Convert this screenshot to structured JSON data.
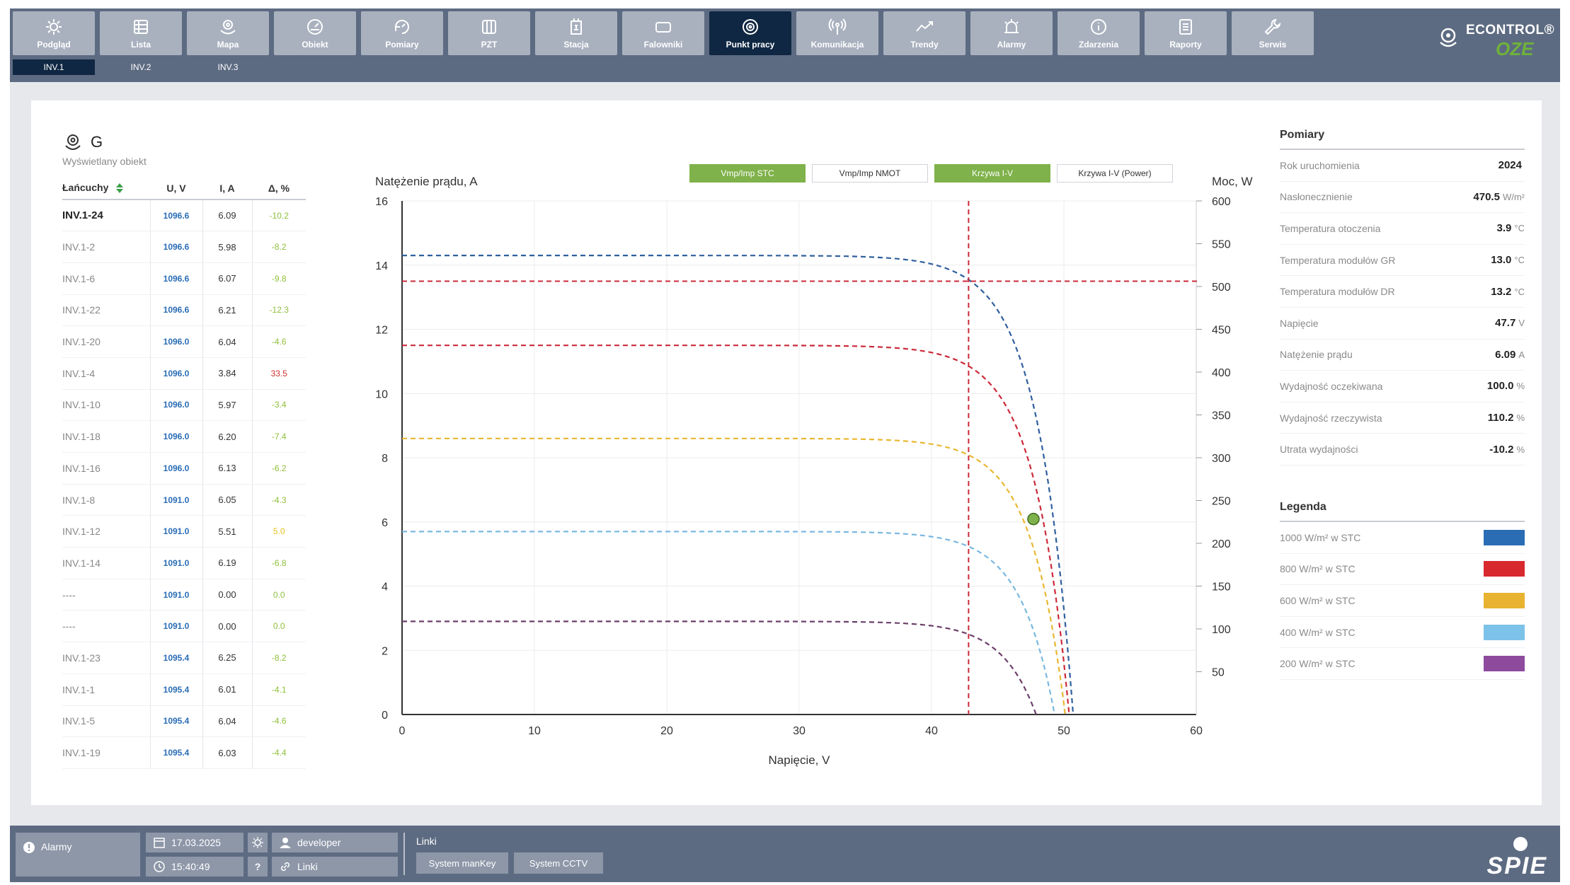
{
  "nav": {
    "items": [
      {
        "label": "Podgląd",
        "icon": "sun-icon"
      },
      {
        "label": "Lista",
        "icon": "list-icon"
      },
      {
        "label": "Mapa",
        "icon": "map-pin-icon"
      },
      {
        "label": "Obiekt",
        "icon": "gauge-icon"
      },
      {
        "label": "Pomiary",
        "icon": "refresh-gauge-icon"
      },
      {
        "label": "PZT",
        "icon": "columns-icon"
      },
      {
        "label": "Stacja",
        "icon": "station-icon"
      },
      {
        "label": "Falowniki",
        "icon": "inverter-icon"
      },
      {
        "label": "Punkt pracy",
        "icon": "target-icon"
      },
      {
        "label": "Komunikacja",
        "icon": "antenna-icon"
      },
      {
        "label": "Trendy",
        "icon": "trend-icon"
      },
      {
        "label": "Alarmy",
        "icon": "alarm-icon"
      },
      {
        "label": "Zdarzenia",
        "icon": "info-icon"
      },
      {
        "label": "Raporty",
        "icon": "report-icon"
      },
      {
        "label": "Serwis",
        "icon": "wrench-icon"
      }
    ],
    "active": "Punkt pracy",
    "subtabs": [
      "INV.1",
      "INV.2",
      "INV.3"
    ],
    "active_subtab": "INV.1"
  },
  "brand": {
    "name": "ECONTROL®",
    "sub": "OZE"
  },
  "object": {
    "name": "G",
    "subtitle": "Wyświetlany obiekt"
  },
  "strings": {
    "headers": {
      "name": "Łańcuchy",
      "u": "U, V",
      "i": "I, A",
      "d": "Δ, %"
    },
    "rows": [
      {
        "name": "INV.1-24",
        "u": "1096.6",
        "i": "6.09",
        "d": "-10.2",
        "color": "#8fbf3a"
      },
      {
        "name": "INV.1-2",
        "u": "1096.6",
        "i": "5.98",
        "d": "-8.2",
        "color": "#8fbf3a"
      },
      {
        "name": "INV.1-6",
        "u": "1096.6",
        "i": "6.07",
        "d": "-9.8",
        "color": "#8fbf3a"
      },
      {
        "name": "INV.1-22",
        "u": "1096.6",
        "i": "6.21",
        "d": "-12.3",
        "color": "#8fbf3a"
      },
      {
        "name": "INV.1-20",
        "u": "1096.0",
        "i": "6.04",
        "d": "-4.6",
        "color": "#8fbf3a"
      },
      {
        "name": "INV.1-4",
        "u": "1096.0",
        "i": "3.84",
        "d": "33.5",
        "color": "#d03030"
      },
      {
        "name": "INV.1-10",
        "u": "1096.0",
        "i": "5.97",
        "d": "-3.4",
        "color": "#8fbf3a"
      },
      {
        "name": "INV.1-18",
        "u": "1096.0",
        "i": "6.20",
        "d": "-7.4",
        "color": "#8fbf3a"
      },
      {
        "name": "INV.1-16",
        "u": "1096.0",
        "i": "6.13",
        "d": "-6.2",
        "color": "#8fbf3a"
      },
      {
        "name": "INV.1-8",
        "u": "1091.0",
        "i": "6.05",
        "d": "-4.3",
        "color": "#8fbf3a"
      },
      {
        "name": "INV.1-12",
        "u": "1091.0",
        "i": "5.51",
        "d": "5.0",
        "color": "#e8c020"
      },
      {
        "name": "INV.1-14",
        "u": "1091.0",
        "i": "6.19",
        "d": "-6.8",
        "color": "#8fbf3a"
      },
      {
        "name": "----",
        "u": "1091.0",
        "i": "0.00",
        "d": "0.0",
        "color": "#8fbf3a"
      },
      {
        "name": "----",
        "u": "1091.0",
        "i": "0.00",
        "d": "0.0",
        "color": "#8fbf3a"
      },
      {
        "name": "INV.1-23",
        "u": "1095.4",
        "i": "6.25",
        "d": "-8.2",
        "color": "#8fbf3a"
      },
      {
        "name": "INV.1-1",
        "u": "1095.4",
        "i": "6.01",
        "d": "-4.1",
        "color": "#8fbf3a"
      },
      {
        "name": "INV.1-5",
        "u": "1095.4",
        "i": "6.04",
        "d": "-4.6",
        "color": "#8fbf3a"
      },
      {
        "name": "INV.1-19",
        "u": "1095.4",
        "i": "6.03",
        "d": "-4.4",
        "color": "#8fbf3a"
      }
    ]
  },
  "chart_buttons": [
    {
      "label": "Vmp/Imp STC",
      "on": true
    },
    {
      "label": "Vmp/Imp NMOT",
      "on": false
    },
    {
      "label": "Krzywa I-V",
      "on": true
    },
    {
      "label": "Krzywa I-V (Power)",
      "on": false
    }
  ],
  "chart_data": {
    "type": "line",
    "ylabel": "Natężenie prądu, A",
    "y2label": "Moc, W",
    "xlabel": "Napięcie, V",
    "xlim": [
      0,
      60
    ],
    "ylim": [
      0,
      16
    ],
    "y2lim": [
      0,
      600
    ],
    "xticks": [
      0,
      10,
      20,
      30,
      40,
      50,
      60
    ],
    "yticks": [
      0,
      2,
      4,
      6,
      8,
      10,
      12,
      14,
      16
    ],
    "y2ticks": [
      50,
      100,
      150,
      200,
      250,
      300,
      350,
      400,
      450,
      500,
      550,
      600
    ],
    "grid": true,
    "series": [
      {
        "irradiance": 1000,
        "color": "#2f5f9e",
        "isc": 14.3,
        "voc": 50.7,
        "knee": 42.0
      },
      {
        "irradiance": 800,
        "color": "#cc2a3a",
        "isc": 11.5,
        "voc": 50.4,
        "knee": 41.5
      },
      {
        "irradiance": 600,
        "color": "#e8b830",
        "isc": 8.6,
        "voc": 50.1,
        "knee": 41.0
      },
      {
        "irradiance": 400,
        "color": "#7ab8e0",
        "isc": 5.7,
        "voc": 49.3,
        "knee": 40.5
      },
      {
        "irradiance": 200,
        "color": "#6b3f6a",
        "isc": 2.9,
        "voc": 47.9,
        "knee": 39.5
      }
    ],
    "vmp_stc": 42.8,
    "imp_stc": 13.5,
    "operating_point": {
      "v": 47.7,
      "i": 6.09,
      "color": "#7fb24a"
    }
  },
  "measurements": {
    "title": "Pomiary",
    "rows": [
      {
        "label": "Rok uruchomienia",
        "value": "2024",
        "unit": ""
      },
      {
        "label": "Nasłonecznienie",
        "value": "470.5",
        "unit": "W/m²"
      },
      {
        "label": "Temperatura otoczenia",
        "value": "3.9",
        "unit": "°C"
      },
      {
        "label": "Temperatura modułów GR",
        "value": "13.0",
        "unit": "°C"
      },
      {
        "label": "Temperatura modułów DR",
        "value": "13.2",
        "unit": "°C"
      },
      {
        "label": "Napięcie",
        "value": "47.7",
        "unit": "V"
      },
      {
        "label": "Natężenie prądu",
        "value": "6.09",
        "unit": "A"
      },
      {
        "label": "Wydajność oczekiwana",
        "value": "100.0",
        "unit": "%"
      },
      {
        "label": "Wydajność rzeczywista",
        "value": "110.2",
        "unit": "%"
      },
      {
        "label": "Utrata wydajności",
        "value": "-10.2",
        "unit": "%"
      }
    ]
  },
  "legend": {
    "title": "Legenda",
    "items": [
      {
        "label": "1000 W/m² w STC",
        "color": "#2a6db5"
      },
      {
        "label": "800 W/m² w STC",
        "color": "#d8292f"
      },
      {
        "label": "600 W/m² w STC",
        "color": "#e8b330"
      },
      {
        "label": "400 W/m² w STC",
        "color": "#7dc2e8"
      },
      {
        "label": "200 W/m² w STC",
        "color": "#8e4b9e"
      }
    ]
  },
  "footer": {
    "alarms": "Alarmy",
    "date": "17.03.2025",
    "time": "15:40:49",
    "user": "developer",
    "links_btn": "Linki",
    "help": "?",
    "links_label": "Linki",
    "link_buttons": [
      "System manKey",
      "System CCTV"
    ],
    "logo": "SPIE"
  }
}
